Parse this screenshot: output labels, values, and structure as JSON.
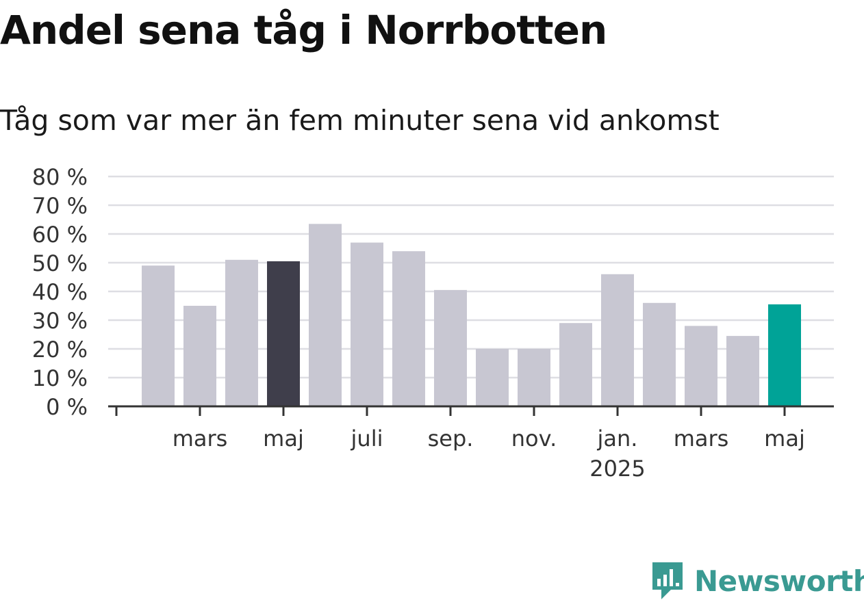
{
  "title": "Andel sena tåg i Norrbotten",
  "subtitle": "Tåg som var mer än fem minuter sena vid ankomst",
  "brand": {
    "name": "Newsworthy",
    "icon": "newsworthy-logo-icon"
  },
  "colors": {
    "bar_default": "#c8c7d2",
    "bar_highlight_dark": "#3f3e4b",
    "bar_highlight_current": "#00a397",
    "grid": "#dedee3",
    "axis": "#333333",
    "brand": "#3a9a92"
  },
  "chart_data": {
    "type": "bar",
    "ylim": [
      0,
      80
    ],
    "yticks": [
      0,
      10,
      20,
      30,
      40,
      50,
      60,
      70,
      80
    ],
    "ytick_labels": [
      "0 %",
      "10 %",
      "20 %",
      "30 %",
      "40 %",
      "50 %",
      "60 %",
      "70 %",
      "80 %"
    ],
    "grid": true,
    "categories": [
      "2024-02",
      "2024-03",
      "2024-04",
      "2024-05",
      "2024-06",
      "2024-07",
      "2024-08",
      "2024-09",
      "2024-10",
      "2024-11",
      "2024-12",
      "2025-01",
      "2025-02",
      "2025-03",
      "2025-04",
      "2025-05"
    ],
    "values": [
      49,
      35,
      51,
      50.5,
      63.5,
      57,
      54,
      40.5,
      20,
      20,
      29,
      46,
      36,
      28,
      24.5,
      35.5
    ],
    "highlight": {
      "2024-05": "bar_highlight_dark",
      "2025-05": "bar_highlight_current"
    },
    "x_tick_labels": [
      {
        "category": "2024-03",
        "lines": [
          "mars"
        ]
      },
      {
        "category": "2024-05",
        "lines": [
          "maj"
        ]
      },
      {
        "category": "2024-07",
        "lines": [
          "juli"
        ]
      },
      {
        "category": "2024-09",
        "lines": [
          "sep."
        ]
      },
      {
        "category": "2024-11",
        "lines": [
          "nov."
        ]
      },
      {
        "category": "2025-01",
        "lines": [
          "jan.",
          "2025"
        ]
      },
      {
        "category": "2025-03",
        "lines": [
          "mars"
        ]
      },
      {
        "category": "2025-05",
        "lines": [
          "maj"
        ]
      }
    ]
  }
}
